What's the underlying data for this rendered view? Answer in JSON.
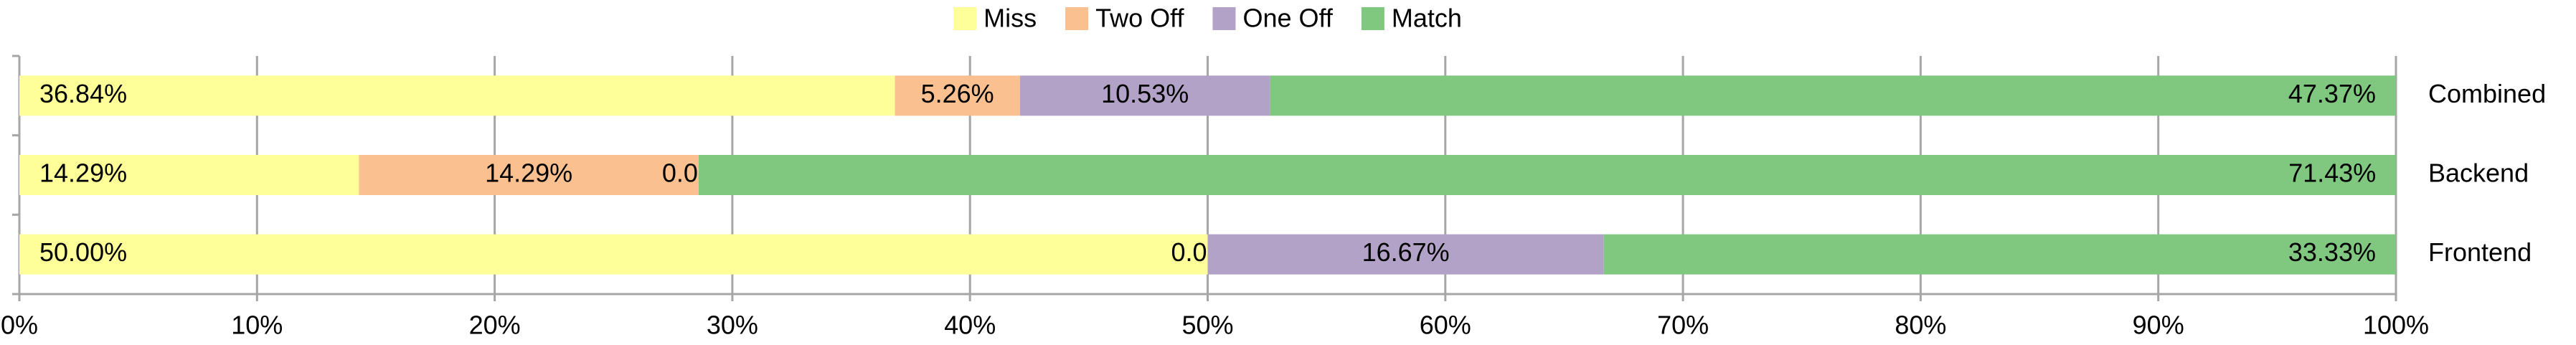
{
  "chart_data": {
    "type": "bar",
    "orientation": "horizontal",
    "stacked": true,
    "categories": [
      "Combined",
      "Backend",
      "Frontend"
    ],
    "series": [
      {
        "name": "Miss",
        "color": "#ffff99",
        "values": [
          36.84,
          14.29,
          50.0
        ],
        "value_labels": [
          "36.84%",
          "14.29%",
          "50.00%"
        ]
      },
      {
        "name": "Two Off",
        "color": "#fac090",
        "values": [
          5.26,
          14.29,
          0.0
        ],
        "value_labels": [
          "5.26%",
          "14.29%",
          "0.00%"
        ]
      },
      {
        "name": "One Off",
        "color": "#b3a2c7",
        "values": [
          10.53,
          0.0,
          16.67
        ],
        "value_labels": [
          "10.53%",
          "0.00%",
          "16.67%"
        ]
      },
      {
        "name": "Match",
        "color": "#80c87f",
        "values": [
          47.37,
          71.43,
          33.33
        ],
        "value_labels": [
          "47.37%",
          "71.43%",
          "33.33%"
        ]
      }
    ],
    "xlim": [
      0,
      100
    ],
    "xticks": [
      {
        "value": 0,
        "label": "0%"
      },
      {
        "value": 10,
        "label": "10%"
      },
      {
        "value": 20,
        "label": "20%"
      },
      {
        "value": 30,
        "label": "30%"
      },
      {
        "value": 40,
        "label": "40%"
      },
      {
        "value": 50,
        "label": "50%"
      },
      {
        "value": 60,
        "label": "60%"
      },
      {
        "value": 70,
        "label": "70%"
      },
      {
        "value": 80,
        "label": "80%"
      },
      {
        "value": 90,
        "label": "90%"
      },
      {
        "value": 100,
        "label": "100%"
      }
    ],
    "grid": true,
    "legend": "top"
  }
}
